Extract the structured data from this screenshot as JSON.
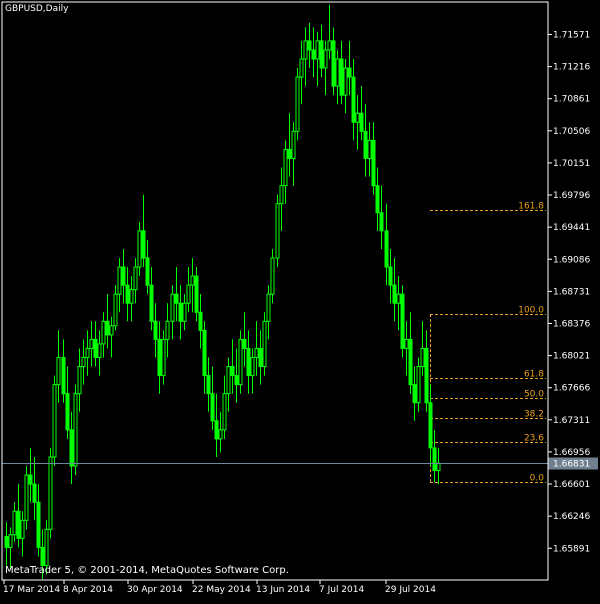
{
  "header": {
    "symbol_label": "GBPUSD,Daily"
  },
  "footer": {
    "copyright": "MetaTrader 5, © 2001-2014, MetaQuotes Software Corp."
  },
  "colors": {
    "background": "#000000",
    "candle": "#00ff00",
    "fib": "#e8a020",
    "axis": "#ffffff",
    "current_price_line": "#6a8aa0",
    "current_price_box": "#708090"
  },
  "chart_data": {
    "type": "candlestick",
    "title": "",
    "xlabel": "",
    "ylabel": "",
    "ylim": [
      1.6554,
      1.7193
    ],
    "y_ticks": [
      "1.71571",
      "1.71216",
      "1.70861",
      "1.70506",
      "1.70151",
      "1.69796",
      "1.69441",
      "1.69086",
      "1.68731",
      "1.68376",
      "1.68021",
      "1.67666",
      "1.67311",
      "1.66956",
      "1.66601",
      "1.66246",
      "1.65891"
    ],
    "x_ticks": [
      "17 Mar 2014",
      "8 Apr 2014",
      "30 Apr 2014",
      "22 May 2014",
      "13 Jun 2014",
      "7 Jul 2014",
      "29 Jul 2014"
    ],
    "current_price": "1.66831",
    "fibonacci": {
      "levels": [
        {
          "label": "161.8",
          "value": 1.69628
        },
        {
          "label": "100.0",
          "value": 1.6848
        },
        {
          "label": "61.8",
          "value": 1.67771
        },
        {
          "label": "50.0",
          "value": 1.67552
        },
        {
          "label": "38.2",
          "value": 1.67333
        },
        {
          "label": "23.6",
          "value": 1.67061
        },
        {
          "label": "0.0",
          "value": 1.66623
        }
      ]
    },
    "series": [
      {
        "values": [
          [
            1.6602,
            1.6618,
            1.657,
            1.659
          ],
          [
            1.659,
            1.6612,
            1.6566,
            1.6604
          ],
          [
            1.6604,
            1.664,
            1.6596,
            1.663
          ],
          [
            1.663,
            1.666,
            1.659,
            1.66
          ],
          [
            1.66,
            1.663,
            1.658,
            1.662
          ],
          [
            1.662,
            1.668,
            1.661,
            1.667
          ],
          [
            1.667,
            1.67,
            1.664,
            1.666
          ],
          [
            1.666,
            1.669,
            1.662,
            1.664
          ],
          [
            1.664,
            1.666,
            1.658,
            1.659
          ],
          [
            1.659,
            1.661,
            1.6555,
            1.657
          ],
          [
            1.657,
            1.662,
            1.656,
            1.661
          ],
          [
            1.661,
            1.67,
            1.66,
            1.669
          ],
          [
            1.669,
            1.678,
            1.668,
            1.677
          ],
          [
            1.677,
            1.683,
            1.675,
            1.68
          ],
          [
            1.68,
            1.682,
            1.675,
            1.676
          ],
          [
            1.676,
            1.679,
            1.671,
            1.672
          ],
          [
            1.672,
            1.674,
            1.666,
            1.668
          ],
          [
            1.668,
            1.677,
            1.667,
            1.676
          ],
          [
            1.676,
            1.681,
            1.674,
            1.679
          ],
          [
            1.679,
            1.682,
            1.677,
            1.68
          ],
          [
            1.68,
            1.683,
            1.678,
            1.681
          ],
          [
            1.681,
            1.684,
            1.679,
            1.682
          ],
          [
            1.682,
            1.684,
            1.679,
            1.68
          ],
          [
            1.68,
            1.683,
            1.678,
            1.6815
          ],
          [
            1.6815,
            1.685,
            1.68,
            1.684
          ],
          [
            1.684,
            1.687,
            1.681,
            1.6825
          ],
          [
            1.6825,
            1.6845,
            1.68,
            1.6835
          ],
          [
            1.6835,
            1.688,
            1.683,
            1.687
          ],
          [
            1.687,
            1.691,
            1.685,
            1.69
          ],
          [
            1.69,
            1.692,
            1.686,
            1.688
          ],
          [
            1.688,
            1.69,
            1.684,
            1.686
          ],
          [
            1.686,
            1.689,
            1.684,
            1.6875
          ],
          [
            1.6875,
            1.691,
            1.686,
            1.69
          ],
          [
            1.69,
            1.695,
            1.689,
            1.694
          ],
          [
            1.694,
            1.698,
            1.69,
            1.691
          ],
          [
            1.691,
            1.693,
            1.687,
            1.688
          ],
          [
            1.688,
            1.69,
            1.683,
            1.684
          ],
          [
            1.684,
            1.686,
            1.68,
            1.682
          ],
          [
            1.682,
            1.684,
            1.676,
            1.678
          ],
          [
            1.678,
            1.683,
            1.677,
            1.682
          ],
          [
            1.682,
            1.686,
            1.68,
            1.684
          ],
          [
            1.684,
            1.688,
            1.682,
            1.687
          ],
          [
            1.687,
            1.69,
            1.684,
            1.686
          ],
          [
            1.686,
            1.688,
            1.682,
            1.684
          ],
          [
            1.684,
            1.687,
            1.683,
            1.686
          ],
          [
            1.686,
            1.69,
            1.685,
            1.688
          ],
          [
            1.688,
            1.691,
            1.685,
            1.689
          ],
          [
            1.689,
            1.69,
            1.684,
            1.685
          ],
          [
            1.685,
            1.687,
            1.681,
            1.683
          ],
          [
            1.683,
            1.684,
            1.676,
            1.678
          ],
          [
            1.678,
            1.68,
            1.674,
            1.676
          ],
          [
            1.676,
            1.679,
            1.672,
            1.673
          ],
          [
            1.673,
            1.676,
            1.669,
            1.671
          ],
          [
            1.671,
            1.674,
            1.6695,
            1.672
          ],
          [
            1.672,
            1.678,
            1.671,
            1.676
          ],
          [
            1.676,
            1.68,
            1.674,
            1.679
          ],
          [
            1.679,
            1.682,
            1.676,
            1.678
          ],
          [
            1.678,
            1.681,
            1.675,
            1.677
          ],
          [
            1.677,
            1.683,
            1.676,
            1.682
          ],
          [
            1.682,
            1.685,
            1.679,
            1.681
          ],
          [
            1.681,
            1.683,
            1.676,
            1.678
          ],
          [
            1.678,
            1.681,
            1.676,
            1.68
          ],
          [
            1.68,
            1.684,
            1.678,
            1.681
          ],
          [
            1.681,
            1.683,
            1.677,
            1.679
          ],
          [
            1.679,
            1.685,
            1.678,
            1.684
          ],
          [
            1.684,
            1.688,
            1.682,
            1.687
          ],
          [
            1.687,
            1.692,
            1.686,
            1.691
          ],
          [
            1.691,
            1.698,
            1.69,
            1.697
          ],
          [
            1.697,
            1.701,
            1.694,
            1.699
          ],
          [
            1.699,
            1.704,
            1.697,
            1.703
          ],
          [
            1.703,
            1.707,
            1.7,
            1.702
          ],
          [
            1.702,
            1.706,
            1.699,
            1.705
          ],
          [
            1.705,
            1.712,
            1.704,
            1.711
          ],
          [
            1.711,
            1.715,
            1.708,
            1.713
          ],
          [
            1.713,
            1.7165,
            1.71,
            1.715
          ],
          [
            1.715,
            1.717,
            1.712,
            1.714
          ],
          [
            1.714,
            1.7165,
            1.711,
            1.713
          ],
          [
            1.713,
            1.716,
            1.71,
            1.715
          ],
          [
            1.715,
            1.7168,
            1.711,
            1.712
          ],
          [
            1.712,
            1.715,
            1.709,
            1.714
          ],
          [
            1.714,
            1.719,
            1.713,
            1.715
          ],
          [
            1.715,
            1.7165,
            1.709,
            1.71
          ],
          [
            1.71,
            1.714,
            1.708,
            1.713
          ],
          [
            1.713,
            1.715,
            1.708,
            1.709
          ],
          [
            1.709,
            1.713,
            1.707,
            1.712
          ],
          [
            1.712,
            1.715,
            1.709,
            1.711
          ],
          [
            1.711,
            1.713,
            1.704,
            1.706
          ],
          [
            1.706,
            1.709,
            1.703,
            1.707
          ],
          [
            1.707,
            1.71,
            1.704,
            1.705
          ],
          [
            1.705,
            1.708,
            1.7,
            1.702
          ],
          [
            1.702,
            1.706,
            1.7,
            1.704
          ],
          [
            1.704,
            1.706,
            1.698,
            1.699
          ],
          [
            1.699,
            1.701,
            1.694,
            1.696
          ],
          [
            1.696,
            1.699,
            1.692,
            1.694
          ],
          [
            1.694,
            1.697,
            1.688,
            1.69
          ],
          [
            1.69,
            1.692,
            1.686,
            1.688
          ],
          [
            1.688,
            1.691,
            1.684,
            1.686
          ],
          [
            1.686,
            1.689,
            1.683,
            1.687
          ],
          [
            1.687,
            1.688,
            1.68,
            1.681
          ],
          [
            1.681,
            1.684,
            1.678,
            1.682
          ],
          [
            1.682,
            1.685,
            1.676,
            1.677
          ],
          [
            1.677,
            1.679,
            1.673,
            1.675
          ],
          [
            1.675,
            1.68,
            1.674,
            1.679
          ],
          [
            1.679,
            1.684,
            1.678,
            1.681
          ],
          [
            1.681,
            1.683,
            1.674,
            1.675
          ],
          [
            1.675,
            1.677,
            1.668,
            1.67
          ],
          [
            1.67,
            1.672,
            1.6662,
            1.6675
          ],
          [
            1.6675,
            1.67,
            1.666,
            1.6683
          ]
        ]
      }
    ]
  }
}
